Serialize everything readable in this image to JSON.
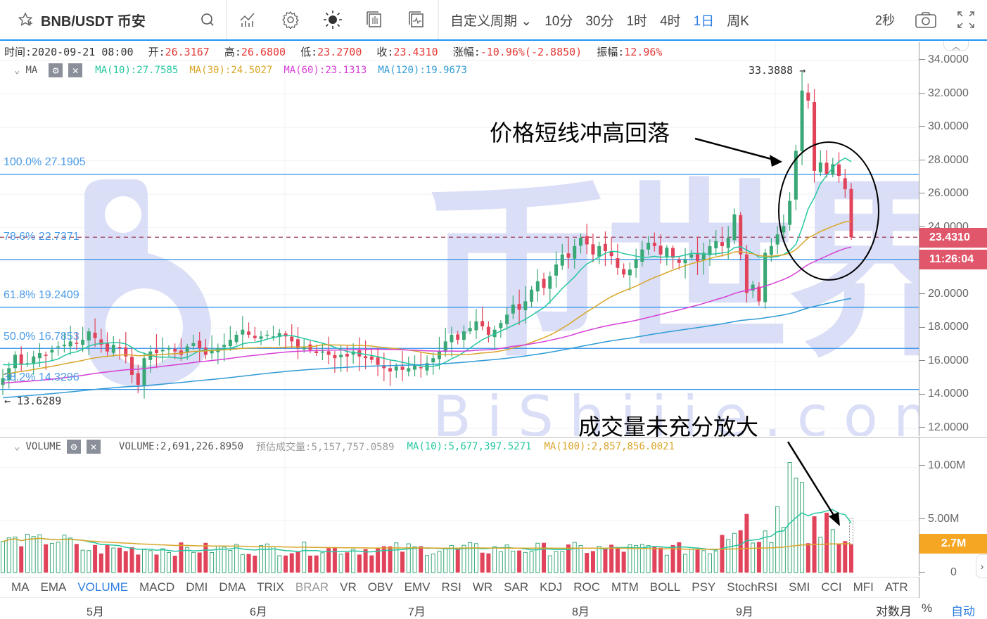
{
  "header": {
    "symbol": "BNB/USDT 币安",
    "timeframes": [
      "自定义周期 ⌄",
      "10分",
      "30分",
      "1时",
      "4时",
      "1日",
      "周K"
    ],
    "active_timeframe": 5,
    "refresh": "2秒"
  },
  "info": {
    "time_label": "时间:2020-09-21 08:00",
    "open_label": "开:",
    "open": "26.3167",
    "high_label": "高:",
    "high": "26.6800",
    "low_label": "低:",
    "low": "23.2700",
    "close_label": "收:",
    "close": "23.4310",
    "change_label": "涨幅:",
    "change": "-10.96%(-2.8850)",
    "amp_label": "振幅:",
    "amp": "12.96%"
  },
  "ma_legend": {
    "name": "MA",
    "items": [
      {
        "text": "MA(10):27.7585",
        "color": "#26c6a0"
      },
      {
        "text": "MA(30):24.5027",
        "color": "#d9a629"
      },
      {
        "text": "MA(60):23.1313",
        "color": "#d63fd6"
      },
      {
        "text": "MA(120):19.9673",
        "color": "#2f9bd6"
      }
    ]
  },
  "vol_legend": {
    "name": "VOLUME",
    "volume": "VOLUME:2,691,226.8950",
    "estimate": "预估成交量:5,157,757.0589",
    "ma10": "MA(10):5,677,397.5271",
    "ma100": "MA(100):2,857,856.0021"
  },
  "price_axis": {
    "ticks": [
      "34.0000",
      "32.0000",
      "30.0000",
      "28.0000",
      "26.0000",
      "24.0000",
      "22.0000",
      "20.0000",
      "18.0000",
      "16.0000",
      "14.0000",
      "12.0000"
    ],
    "current_price": "23.4310",
    "countdown": "11:26:04"
  },
  "volume_axis": {
    "ticks": [
      "10.00M",
      "5.00M",
      "0"
    ],
    "current": "2.7M"
  },
  "fib_levels": [
    {
      "label": "100.0% 27.1905",
      "value": 27.1905
    },
    {
      "label": "78.6% 22.7371",
      "value": 22.7371
    },
    {
      "label": "61.8% 19.2409",
      "value": 19.2409
    },
    {
      "label": "50.0% 16.7853",
      "value": 16.7853
    },
    {
      "label": "38.2% 14.3296",
      "value": 14.3296
    }
  ],
  "markers": {
    "high": "33.3888 →",
    "low": "← 13.6289"
  },
  "annotations": {
    "price": "价格短线冲高回落",
    "volume": "成交量未充分放大"
  },
  "watermark": {
    "text1": "币世界",
    "text2": "BiShijie.com"
  },
  "indicators": [
    "MA",
    "EMA",
    "VOLUME",
    "MACD",
    "DMI",
    "DMA",
    "TRIX",
    "BRAR",
    "VR",
    "OBV",
    "EMV",
    "RSI",
    "WR",
    "SAR",
    "KDJ",
    "ROC",
    "MTM",
    "BOLL",
    "PSY",
    "StochRSI",
    "SMI",
    "CCI",
    "MFI",
    "ATR"
  ],
  "active_indicator": "VOLUME",
  "time_axis": {
    "months": [
      {
        "label": "5月",
        "x": 135
      },
      {
        "label": "6月",
        "x": 367
      },
      {
        "label": "7月",
        "x": 592
      },
      {
        "label": "8月",
        "x": 825
      },
      {
        "label": "9月",
        "x": 1058
      }
    ],
    "log_label": "对数",
    "month_label": "月",
    "pct_label": "%",
    "auto_label": "自动"
  },
  "chart_data": {
    "type": "candlestick",
    "title": "BNB/USDT 币安 1日",
    "ylim": [
      12,
      34.5
    ],
    "volume_ylim": [
      0,
      11000000
    ],
    "x_range": [
      "2020-04 (late)",
      "2020-09-21"
    ],
    "last_candle": {
      "date": "2020-09-21",
      "open": 26.3167,
      "high": 26.68,
      "low": 23.27,
      "close": 23.431,
      "volume": 2691226.895
    },
    "period_high": 33.3888,
    "period_low": 13.6289,
    "closes": [
      15.0,
      15.6,
      16.4,
      15.8,
      15.9,
      16.3,
      16.5,
      16.4,
      16.7,
      16.9,
      17.0,
      17.2,
      17.1,
      17.3,
      17.8,
      17.4,
      17.0,
      16.6,
      17.0,
      16.8,
      16.3,
      15.2,
      14.6,
      16.2,
      16.6,
      16.5,
      16.7,
      16.8,
      16.6,
      16.4,
      16.9,
      17.1,
      16.8,
      16.4,
      16.7,
      16.8,
      17.0,
      17.3,
      17.6,
      17.9,
      17.6,
      17.4,
      17.5,
      17.6,
      17.5,
      17.7,
      17.5,
      17.2,
      16.8,
      16.9,
      16.7,
      16.5,
      16.6,
      16.4,
      16.2,
      16.4,
      16.3,
      16.6,
      16.3,
      16.2,
      16.1,
      15.8,
      15.6,
      15.4,
      15.7,
      15.5,
      15.6,
      15.8,
      15.6,
      15.9,
      16.2,
      16.6,
      17.2,
      17.6,
      17.3,
      17.8,
      18.0,
      18.4,
      18.1,
      17.6,
      17.9,
      18.3,
      18.8,
      19.4,
      19.1,
      19.6,
      20.3,
      20.8,
      20.4,
      21.1,
      21.8,
      22.4,
      22.2,
      22.9,
      23.4,
      23.0,
      22.4,
      22.9,
      22.6,
      22.3,
      21.6,
      21.2,
      21.5,
      22.1,
      22.7,
      23.1,
      22.9,
      22.4,
      22.8,
      22.2,
      21.9,
      22.1,
      22.4,
      22.0,
      22.5,
      22.9,
      23.2,
      22.9,
      23.4,
      24.8,
      22.4,
      20.1,
      20.6,
      19.6,
      22.5,
      22.9,
      23.6,
      24.1,
      25.6,
      28.6,
      32.2,
      31.6,
      27.4,
      27.9,
      27.2,
      27.8,
      27.1,
      26.3,
      23.431
    ],
    "ma": [
      {
        "name": "MA(10)",
        "value": 27.7585,
        "color": "#26c6a0"
      },
      {
        "name": "MA(30)",
        "value": 24.5027,
        "color": "#d9a629"
      },
      {
        "name": "MA(60)",
        "value": 23.1313,
        "color": "#d63fd6"
      },
      {
        "name": "MA(120)",
        "value": 19.9673,
        "color": "#2f9bd6"
      }
    ]
  },
  "colors": {
    "up": "#3aa876",
    "down": "#e0435a",
    "fib": "#2e8fe8",
    "dash": "#9c3b55",
    "watermark": "#d4d9f5"
  }
}
